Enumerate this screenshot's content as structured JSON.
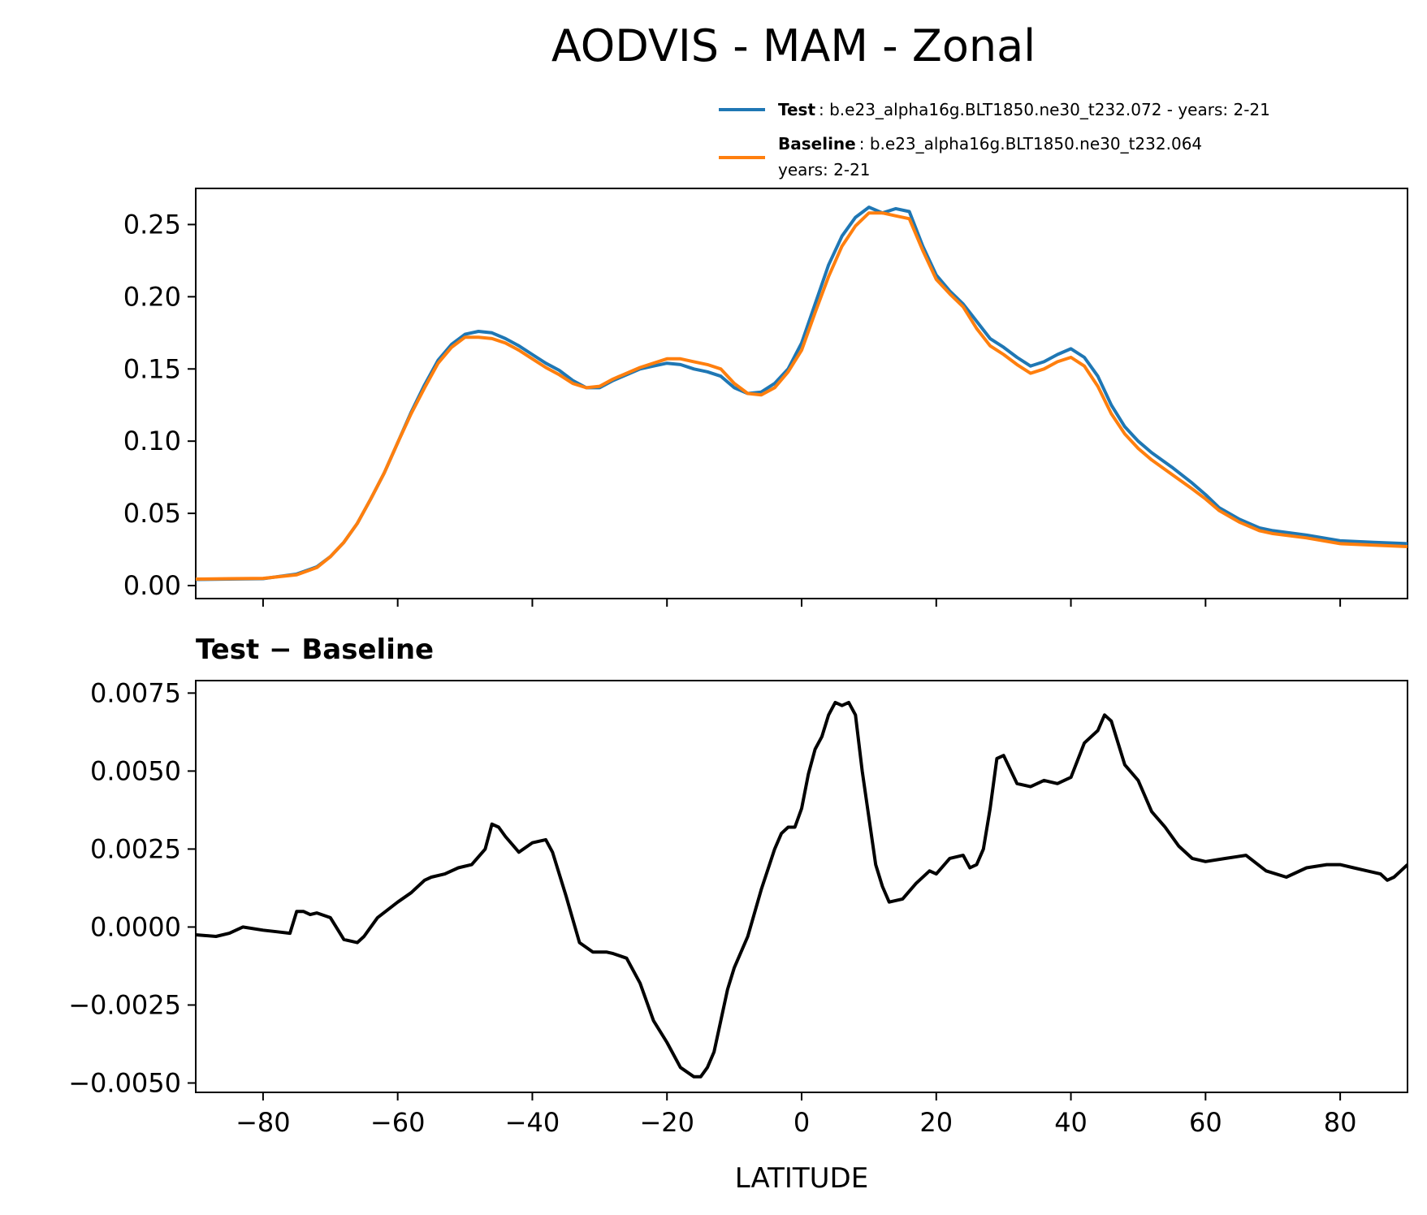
{
  "figure": {
    "title": "AODVIS - MAM - Zonal",
    "xlabel": "LATITUDE",
    "diff_title": "Test − Baseline"
  },
  "legend": {
    "test_name": "Test",
    "test_desc": ": b.e23_alpha16g.BLT1850.ne30_t232.072 - years: 2-21",
    "baseline_name": "Baseline",
    "baseline_desc": ": b.e23_alpha16g.BLT1850.ne30_t232.064",
    "baseline_years": "years: 2-21"
  },
  "colors": {
    "test": "#1f77b4",
    "baseline": "#ff7f0e",
    "diff": "#000000"
  },
  "chart_data": [
    {
      "type": "line",
      "title": "AODVIS - MAM - Zonal",
      "xlim": [
        -90,
        90
      ],
      "ylim": [
        -0.009,
        0.275
      ],
      "xticks": [
        -80,
        -60,
        -40,
        -20,
        0,
        20,
        40,
        60,
        80
      ],
      "yticks": [
        0.0,
        0.05,
        0.1,
        0.15,
        0.2,
        0.25
      ],
      "ytick_labels": [
        "0.00",
        "0.05",
        "0.10",
        "0.15",
        "0.20",
        "0.25"
      ],
      "legend_position": "top-right",
      "x": [
        -90,
        -85,
        -80,
        -75,
        -72,
        -70,
        -68,
        -66,
        -64,
        -62,
        -60,
        -58,
        -56,
        -54,
        -52,
        -50,
        -48,
        -46,
        -44,
        -42,
        -40,
        -38,
        -36,
        -34,
        -32,
        -30,
        -28,
        -26,
        -24,
        -22,
        -20,
        -18,
        -16,
        -14,
        -12,
        -10,
        -8,
        -6,
        -4,
        -2,
        0,
        2,
        4,
        6,
        8,
        10,
        12,
        14,
        16,
        18,
        20,
        22,
        24,
        26,
        28,
        30,
        32,
        34,
        36,
        38,
        40,
        42,
        44,
        46,
        48,
        50,
        52,
        55,
        58,
        60,
        62,
        65,
        68,
        70,
        75,
        80,
        85,
        90
      ],
      "series": [
        {
          "name": "Test",
          "values": [
            0.0042,
            0.0045,
            0.0048,
            0.008,
            0.013,
            0.02,
            0.03,
            0.043,
            0.06,
            0.078,
            0.099,
            0.12,
            0.139,
            0.156,
            0.167,
            0.174,
            0.176,
            0.175,
            0.171,
            0.166,
            0.16,
            0.154,
            0.149,
            0.142,
            0.137,
            0.137,
            0.142,
            0.146,
            0.15,
            0.152,
            0.154,
            0.153,
            0.15,
            0.148,
            0.145,
            0.137,
            0.133,
            0.134,
            0.14,
            0.15,
            0.168,
            0.195,
            0.222,
            0.242,
            0.255,
            0.262,
            0.258,
            0.261,
            0.259,
            0.235,
            0.215,
            0.204,
            0.195,
            0.183,
            0.171,
            0.165,
            0.158,
            0.152,
            0.155,
            0.16,
            0.164,
            0.158,
            0.145,
            0.125,
            0.11,
            0.1,
            0.092,
            0.082,
            0.071,
            0.063,
            0.054,
            0.046,
            0.04,
            0.038,
            0.035,
            0.031,
            0.03,
            0.029
          ]
        },
        {
          "name": "Baseline",
          "values": [
            0.0045,
            0.0048,
            0.005,
            0.0075,
            0.0125,
            0.02,
            0.03,
            0.043,
            0.06,
            0.078,
            0.099,
            0.119,
            0.137,
            0.154,
            0.165,
            0.172,
            0.172,
            0.171,
            0.168,
            0.163,
            0.157,
            0.151,
            0.146,
            0.14,
            0.137,
            0.138,
            0.143,
            0.147,
            0.151,
            0.154,
            0.157,
            0.157,
            0.155,
            0.153,
            0.15,
            0.14,
            0.133,
            0.132,
            0.137,
            0.148,
            0.163,
            0.189,
            0.214,
            0.235,
            0.249,
            0.258,
            0.258,
            0.256,
            0.254,
            0.232,
            0.212,
            0.202,
            0.193,
            0.178,
            0.166,
            0.16,
            0.153,
            0.147,
            0.15,
            0.155,
            0.158,
            0.152,
            0.138,
            0.119,
            0.105,
            0.095,
            0.087,
            0.077,
            0.067,
            0.06,
            0.052,
            0.044,
            0.038,
            0.036,
            0.033,
            0.029,
            0.028,
            0.027
          ]
        }
      ]
    },
    {
      "type": "line",
      "title": "Test − Baseline",
      "xlabel": "LATITUDE",
      "xlim": [
        -90,
        90
      ],
      "ylim": [
        -0.0053,
        0.0079
      ],
      "xticks": [
        -80,
        -60,
        -40,
        -20,
        0,
        20,
        40,
        60,
        80
      ],
      "xtick_labels": [
        "−80",
        "−60",
        "−40",
        "−20",
        "0",
        "20",
        "40",
        "60",
        "80"
      ],
      "yticks": [
        -0.005,
        -0.0025,
        0.0,
        0.0025,
        0.005,
        0.0075
      ],
      "ytick_labels": [
        "−0.0050",
        "−0.0025",
        "0.0000",
        "0.0025",
        "0.0050",
        "0.0075"
      ],
      "x": [
        -90,
        -87,
        -85,
        -83,
        -80,
        -78,
        -76,
        -75,
        -74,
        -73,
        -72,
        -70,
        -68,
        -66,
        -65,
        -63,
        -60,
        -58,
        -56,
        -55,
        -53,
        -51,
        -49,
        -47,
        -46,
        -45,
        -44,
        -42,
        -40,
        -38,
        -37,
        -35,
        -33,
        -31,
        -29,
        -28,
        -26,
        -24,
        -22,
        -20,
        -18,
        -16,
        -15,
        -14,
        -13,
        -12,
        -11,
        -10,
        -8,
        -6,
        -4,
        -3,
        -2,
        -1,
        0,
        1,
        2,
        3,
        4,
        5,
        6,
        7,
        8,
        9,
        10,
        11,
        12,
        13,
        15,
        17,
        19,
        20,
        22,
        24,
        25,
        26,
        27,
        28,
        29,
        30,
        32,
        34,
        36,
        38,
        40,
        42,
        44,
        45,
        46,
        48,
        50,
        52,
        54,
        56,
        58,
        60,
        63,
        66,
        69,
        72,
        75,
        78,
        80,
        82,
        84,
        86,
        87,
        88,
        89,
        90
      ],
      "series": [
        {
          "values": [
            -0.00025,
            -0.0003,
            -0.0002,
            0.0,
            -0.0001,
            -0.00015,
            -0.0002,
            0.0005,
            0.0005,
            0.0004,
            0.00045,
            0.0003,
            -0.0004,
            -0.0005,
            -0.0003,
            0.0003,
            0.0008,
            0.0011,
            0.0015,
            0.0016,
            0.0017,
            0.0019,
            0.002,
            0.0025,
            0.0033,
            0.0032,
            0.0029,
            0.0024,
            0.0027,
            0.0028,
            0.0024,
            0.001,
            -0.0005,
            -0.0008,
            -0.0008,
            -0.00085,
            -0.001,
            -0.0018,
            -0.003,
            -0.0037,
            -0.0045,
            -0.0048,
            -0.0048,
            -0.0045,
            -0.004,
            -0.003,
            -0.002,
            -0.0013,
            -0.0003,
            0.0012,
            0.0025,
            0.003,
            0.0032,
            0.0032,
            0.0038,
            0.0049,
            0.0057,
            0.0061,
            0.0068,
            0.0072,
            0.0071,
            0.0072,
            0.0068,
            0.005,
            0.0035,
            0.002,
            0.0013,
            0.0008,
            0.0009,
            0.0014,
            0.0018,
            0.0017,
            0.0022,
            0.0023,
            0.0019,
            0.002,
            0.0025,
            0.0038,
            0.0054,
            0.0055,
            0.0046,
            0.0045,
            0.0047,
            0.0046,
            0.0048,
            0.0059,
            0.0063,
            0.0068,
            0.0066,
            0.0052,
            0.0047,
            0.0037,
            0.0032,
            0.0026,
            0.0022,
            0.0021,
            0.0022,
            0.0023,
            0.0018,
            0.0016,
            0.0019,
            0.002,
            0.002,
            0.0019,
            0.0018,
            0.0017,
            0.0015,
            0.0016,
            0.0018,
            0.002
          ]
        }
      ]
    }
  ]
}
